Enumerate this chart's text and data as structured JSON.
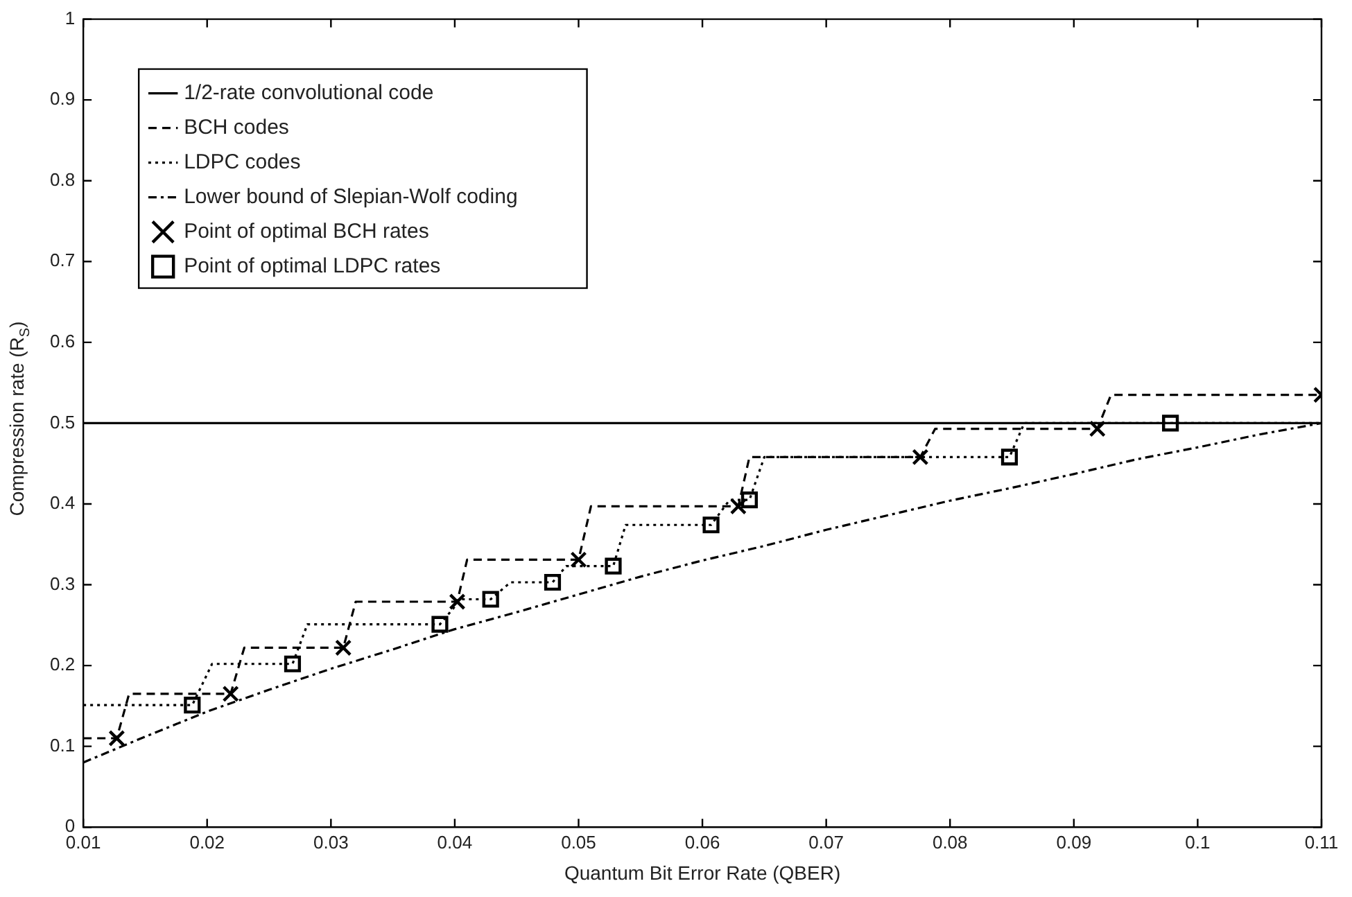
{
  "chart_data": {
    "type": "line",
    "xlabel": "Quantum Bit Error Rate (QBER)",
    "ylabel": "Compression rate (R$_{S}$)",
    "xlim": [
      0.01,
      0.11
    ],
    "xticks": [
      0.01,
      0.02,
      0.03,
      0.04,
      0.05,
      0.06,
      0.07,
      0.08,
      0.09,
      0.1,
      0.11
    ],
    "ylim": [
      0,
      1
    ],
    "yticks": [
      0,
      0.1,
      0.2,
      0.3,
      0.4,
      0.5,
      0.6,
      0.7,
      0.8,
      0.9,
      1
    ],
    "grid": false,
    "legend": "top left",
    "series": [
      {
        "name": "1/2-rate convolutional code",
        "type": "line",
        "color": "#000000",
        "line_style": "solid",
        "marker": "none",
        "x": [
          0.01,
          0.11
        ],
        "values": [
          0.5,
          0.5
        ]
      },
      {
        "name": "BCH codes",
        "type": "line",
        "color": "#000000",
        "line_style": "dashed",
        "marker": "none",
        "x": [
          0.01,
          0.0127,
          0.0137,
          0.0219,
          0.023,
          0.031,
          0.032,
          0.0402,
          0.041,
          0.05,
          0.051,
          0.0629,
          0.0638,
          0.0776,
          0.0788,
          0.0919,
          0.093,
          0.11
        ],
        "values": [
          0.11,
          0.11,
          0.165,
          0.165,
          0.222,
          0.222,
          0.279,
          0.279,
          0.331,
          0.331,
          0.397,
          0.397,
          0.458,
          0.458,
          0.493,
          0.493,
          0.535,
          0.535
        ]
      },
      {
        "name": "LDPC codes",
        "type": "line",
        "color": "#000000",
        "line_style": "dotted",
        "marker": "none",
        "x": [
          0.01,
          0.0188,
          0.0204,
          0.0269,
          0.0281,
          0.0388,
          0.0405,
          0.0429,
          0.0445,
          0.0479,
          0.049,
          0.0528,
          0.0538,
          0.0607,
          0.0622,
          0.0638,
          0.065,
          0.0848,
          0.086,
          0.11
        ],
        "values": [
          0.151,
          0.151,
          0.202,
          0.202,
          0.251,
          0.251,
          0.282,
          0.282,
          0.303,
          0.303,
          0.323,
          0.323,
          0.374,
          0.374,
          0.405,
          0.405,
          0.458,
          0.458,
          0.5,
          0.5
        ]
      },
      {
        "name": "Lower bound of Slepian-Wolf coding",
        "type": "line",
        "color": "#000000",
        "line_style": "dashdot",
        "marker": "none",
        "x": [
          0.01,
          0.015,
          0.02,
          0.025,
          0.03,
          0.035,
          0.04,
          0.045,
          0.05,
          0.055,
          0.06,
          0.065,
          0.07,
          0.075,
          0.08,
          0.085,
          0.09,
          0.095,
          0.1,
          0.105,
          0.11
        ],
        "values": [
          0.08,
          0.112,
          0.143,
          0.17,
          0.196,
          0.22,
          0.245,
          0.266,
          0.288,
          0.31,
          0.33,
          0.348,
          0.368,
          0.386,
          0.404,
          0.42,
          0.437,
          0.455,
          0.47,
          0.486,
          0.5
        ]
      },
      {
        "name": "Point of optimal BCH rates",
        "type": "scatter",
        "color": "#000000",
        "marker": "cross",
        "x": [
          0.0127,
          0.0219,
          0.031,
          0.0402,
          0.05,
          0.0629,
          0.0776,
          0.0919,
          0.11
        ],
        "values": [
          0.11,
          0.165,
          0.222,
          0.279,
          0.331,
          0.397,
          0.458,
          0.493,
          0.535
        ]
      },
      {
        "name": "Point of optimal LDPC rates",
        "type": "scatter",
        "color": "#000000",
        "marker": "square",
        "x": [
          0.0188,
          0.0269,
          0.0388,
          0.0429,
          0.0479,
          0.0528,
          0.0607,
          0.0638,
          0.0848,
          0.0978
        ],
        "values": [
          0.151,
          0.202,
          0.251,
          0.282,
          0.303,
          0.323,
          0.374,
          0.405,
          0.458,
          0.5
        ]
      }
    ]
  }
}
